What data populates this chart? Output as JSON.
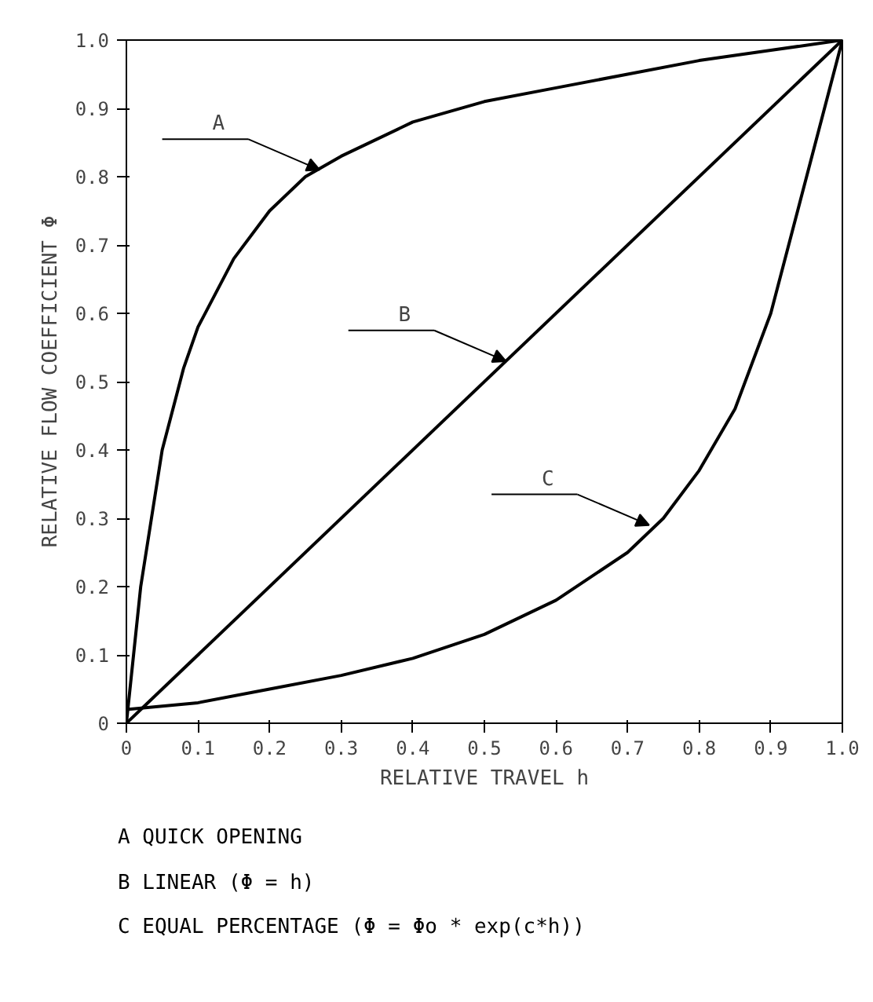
{
  "chart_data": {
    "type": "line",
    "xlabel": "RELATIVE TRAVEL h",
    "ylabel": "RELATIVE FLOW COEFFICIENT Φ",
    "xlim": [
      0,
      1
    ],
    "ylim": [
      0,
      1
    ],
    "xticks": [
      0,
      0.1,
      0.2,
      0.3,
      0.4,
      0.5,
      0.6,
      0.7,
      0.8,
      0.9,
      {
        "value": 1,
        "label": "1.0"
      }
    ],
    "yticks": [
      0,
      0.1,
      0.2,
      0.3,
      0.4,
      0.5,
      0.6,
      0.7,
      0.8,
      0.9,
      {
        "value": 1,
        "label": "1.0"
      }
    ],
    "grid": false,
    "marker": "none",
    "line_style": "solid",
    "series": [
      {
        "color": "#000000",
        "x": [
          0,
          0.02,
          0.05,
          0.08,
          0.1,
          0.15,
          0.2,
          0.25,
          0.3,
          0.4,
          0.5,
          0.6,
          0.7,
          0.8,
          0.9,
          1
        ],
        "values": [
          0,
          0.2,
          0.4,
          0.52,
          0.58,
          0.68,
          0.75,
          0.8,
          0.83,
          0.88,
          0.91,
          0.93,
          0.95,
          0.97,
          0.985,
          1
        ]
      },
      {
        "color": "#000000",
        "x": [
          0,
          1
        ],
        "values": [
          0,
          1
        ]
      },
      {
        "color": "#000000",
        "x": [
          0,
          0.1,
          0.2,
          0.3,
          0.4,
          0.5,
          0.6,
          0.7,
          0.75,
          0.8,
          0.85,
          0.9,
          0.95,
          1
        ],
        "values": [
          0.02,
          0.03,
          0.05,
          0.07,
          0.095,
          0.13,
          0.18,
          0.25,
          0.3,
          0.37,
          0.46,
          0.6,
          0.8,
          1
        ]
      }
    ],
    "annotations": [
      {
        "text": "A",
        "x": 0.27,
        "y": 0.81
      },
      {
        "text": "B",
        "x": 0.53,
        "y": 0.53
      },
      {
        "text": "C",
        "x": 0.73,
        "y": 0.29
      },
      "A QUICK OPENING",
      "B LINEAR (Φ = h)",
      "C EQUAL PERCENTAGE (Φ = Φo * exp(c*h))"
    ]
  }
}
